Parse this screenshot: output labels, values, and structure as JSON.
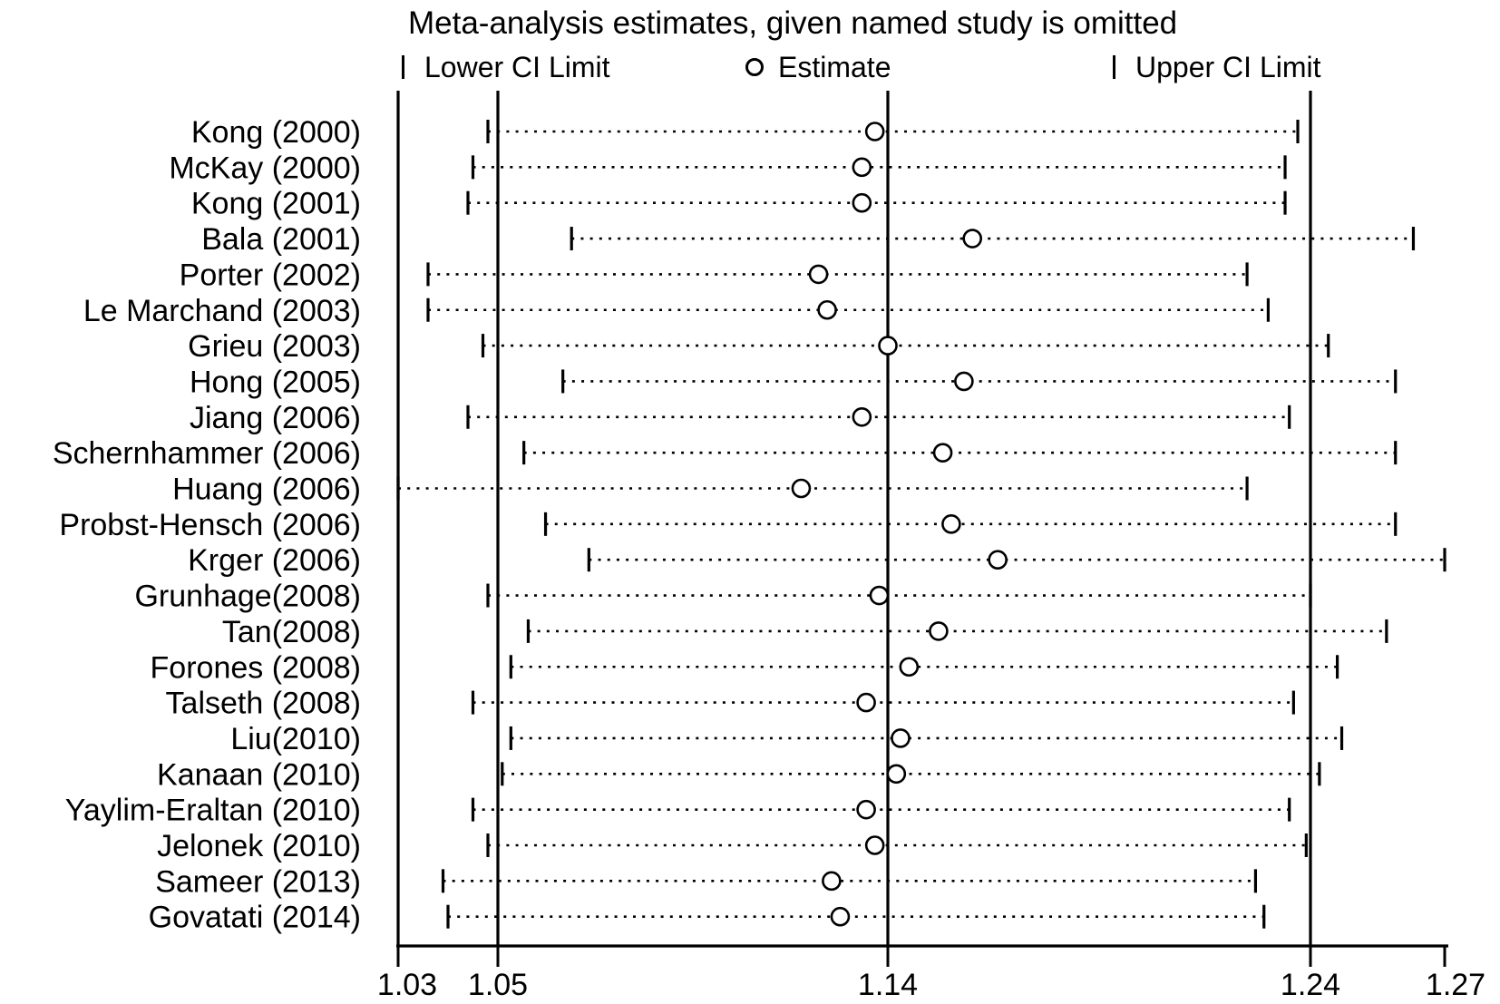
{
  "figure": {
    "title": "Meta-analysis estimates, given named study is omitted"
  },
  "legend": {
    "lower": "Lower CI Limit",
    "estimate": "Estimate",
    "upper": "Upper CI Limit"
  },
  "colors": {
    "foreground": "#000000",
    "background": "#ffffff"
  },
  "chart_data": {
    "type": "scatter",
    "variant": "leave-one-out sensitivity forest plot",
    "title": "Meta-analysis estimates, given named study is omitted",
    "legend": [
      "Lower CI Limit",
      "Estimate",
      "Upper CI Limit"
    ],
    "grid": false,
    "x_axis": {
      "range": [
        1.03,
        1.27
      ],
      "ticks": [
        1.03,
        1.05,
        1.14,
        1.24,
        1.27
      ],
      "reference_lines": [
        1.05,
        1.14,
        1.24
      ]
    },
    "studies": [
      {
        "name": "Kong (2000)",
        "lower": 1.048,
        "estimate": 1.137,
        "upper": 1.237
      },
      {
        "name": "McKay (2000)",
        "lower": 1.045,
        "estimate": 1.134,
        "upper": 1.234
      },
      {
        "name": "Kong (2001)",
        "lower": 1.044,
        "estimate": 1.134,
        "upper": 1.234
      },
      {
        "name": "Bala (2001)",
        "lower": 1.067,
        "estimate": 1.16,
        "upper": 1.263
      },
      {
        "name": "Porter (2002)",
        "lower": 1.036,
        "estimate": 1.124,
        "upper": 1.225
      },
      {
        "name": "Le Marchand (2003)",
        "lower": 1.036,
        "estimate": 1.126,
        "upper": 1.23
      },
      {
        "name": "Grieu (2003)",
        "lower": 1.047,
        "estimate": 1.14,
        "upper": 1.244
      },
      {
        "name": "Hong (2005)",
        "lower": 1.065,
        "estimate": 1.158,
        "upper": 1.259
      },
      {
        "name": "Jiang (2006)",
        "lower": 1.044,
        "estimate": 1.134,
        "upper": 1.235
      },
      {
        "name": "Schernhammer (2006)",
        "lower": 1.056,
        "estimate": 1.153,
        "upper": 1.259
      },
      {
        "name": "Huang (2006)",
        "lower": 1.03,
        "estimate": 1.12,
        "upper": 1.225
      },
      {
        "name": "Probst-Hensch (2006)",
        "lower": 1.061,
        "estimate": 1.155,
        "upper": 1.259
      },
      {
        "name": "Krger (2006)",
        "lower": 1.071,
        "estimate": 1.166,
        "upper": 1.27
      },
      {
        "name": "Grunhage(2008)",
        "lower": 1.048,
        "estimate": 1.138,
        "upper": 1.24
      },
      {
        "name": "Tan(2008)",
        "lower": 1.057,
        "estimate": 1.152,
        "upper": 1.257
      },
      {
        "name": "Forones (2008)",
        "lower": 1.053,
        "estimate": 1.145,
        "upper": 1.246
      },
      {
        "name": "Talseth (2008)",
        "lower": 1.045,
        "estimate": 1.135,
        "upper": 1.236
      },
      {
        "name": "Liu(2010)",
        "lower": 1.053,
        "estimate": 1.143,
        "upper": 1.247
      },
      {
        "name": "Kanaan (2010)",
        "lower": 1.051,
        "estimate": 1.142,
        "upper": 1.242
      },
      {
        "name": "Yaylim-Eraltan (2010)",
        "lower": 1.045,
        "estimate": 1.135,
        "upper": 1.235
      },
      {
        "name": "Jelonek (2010)",
        "lower": 1.048,
        "estimate": 1.137,
        "upper": 1.239
      },
      {
        "name": "Sameer (2013)",
        "lower": 1.039,
        "estimate": 1.127,
        "upper": 1.227
      },
      {
        "name": "Govatati (2014)",
        "lower": 1.04,
        "estimate": 1.129,
        "upper": 1.229
      }
    ]
  }
}
